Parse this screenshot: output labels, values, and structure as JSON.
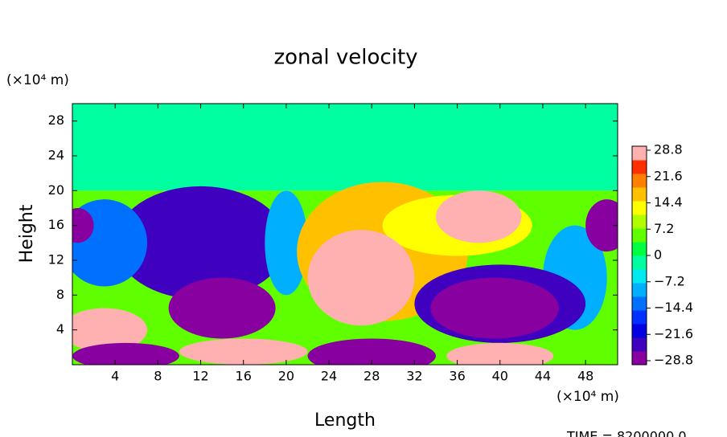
{
  "chart_data": {
    "type": "contour",
    "title": "zonal velocity",
    "x_label": "Length",
    "y_label": "Height",
    "x_unit": "(×10⁴ m)",
    "y_unit": "(×10⁴ m)",
    "footer": "TIME = 8200000.0",
    "xlim": [
      0,
      51
    ],
    "ylim": [
      0,
      30
    ],
    "xticks": [
      4,
      8,
      12,
      16,
      20,
      24,
      28,
      32,
      36,
      40,
      44,
      48
    ],
    "yticks": [
      4,
      8,
      12,
      16,
      20,
      24,
      28
    ],
    "colorbar_lim": [
      -28.8,
      28.8
    ],
    "colorbar_ticks": [
      {
        "value": -28.8,
        "label": "−28.8"
      },
      {
        "value": -21.6,
        "label": "−21.6"
      },
      {
        "value": -14.4,
        "label": "−14.4"
      },
      {
        "value": -7.2,
        "label": "−7.2"
      },
      0,
      7.2,
      14.4,
      21.6,
      28.8
    ],
    "colors": [
      "#8800a0",
      "#4000c0",
      "#0000e0",
      "#0030ff",
      "#0070ff",
      "#00b0ff",
      "#00e8f0",
      "#00ffa0",
      "#00ff40",
      "#60ff00",
      "#b0ff00",
      "#ffff00",
      "#ffc000",
      "#ff8000",
      "#ff3000",
      "#ffb0b0"
    ],
    "regions": [
      {
        "x": 25.5,
        "y": 25,
        "rx": 26,
        "ry": 5,
        "value": -1,
        "shape": "rect"
      },
      {
        "x": 25.5,
        "y": 10,
        "rx": 26,
        "ry": 10,
        "value": 5,
        "shape": "rect"
      },
      {
        "x": 12,
        "y": 14,
        "rx": 8,
        "ry": 6.5,
        "value": -22
      },
      {
        "x": 3,
        "y": 14,
        "rx": 4,
        "ry": 5,
        "value": -12
      },
      {
        "x": 0.5,
        "y": 16,
        "rx": 1.5,
        "ry": 2,
        "value": -28.8
      },
      {
        "x": 20,
        "y": 14,
        "rx": 2,
        "ry": 6,
        "value": -10
      },
      {
        "x": 47,
        "y": 10,
        "rx": 3,
        "ry": 6,
        "value": -8
      },
      {
        "x": 50,
        "y": 16,
        "rx": 2,
        "ry": 3,
        "value": -28.8
      },
      {
        "x": 14,
        "y": 6.5,
        "rx": 5,
        "ry": 3.5,
        "value": -28.8
      },
      {
        "x": 3,
        "y": 4,
        "rx": 4,
        "ry": 2.5,
        "value": 28.8
      },
      {
        "x": 29,
        "y": 13,
        "rx": 8,
        "ry": 8,
        "value": 18
      },
      {
        "x": 36,
        "y": 16,
        "rx": 7,
        "ry": 3.5,
        "value": 14
      },
      {
        "x": 27,
        "y": 10,
        "rx": 5,
        "ry": 5.5,
        "value": 28.8
      },
      {
        "x": 38,
        "y": 17,
        "rx": 4,
        "ry": 3,
        "value": 28.8
      },
      {
        "x": 40,
        "y": 7,
        "rx": 8,
        "ry": 4.5,
        "value": -22
      },
      {
        "x": 39.5,
        "y": 6.5,
        "rx": 6,
        "ry": 3.5,
        "value": -28.8
      },
      {
        "x": 28,
        "y": 1,
        "rx": 6,
        "ry": 2,
        "value": -28.8
      },
      {
        "x": 16,
        "y": 1.5,
        "rx": 6,
        "ry": 1.5,
        "value": 28.8
      },
      {
        "x": 40,
        "y": 1,
        "rx": 5,
        "ry": 1.5,
        "value": 28.8
      },
      {
        "x": 5,
        "y": 1,
        "rx": 5,
        "ry": 1.5,
        "value": -28.8
      }
    ]
  }
}
